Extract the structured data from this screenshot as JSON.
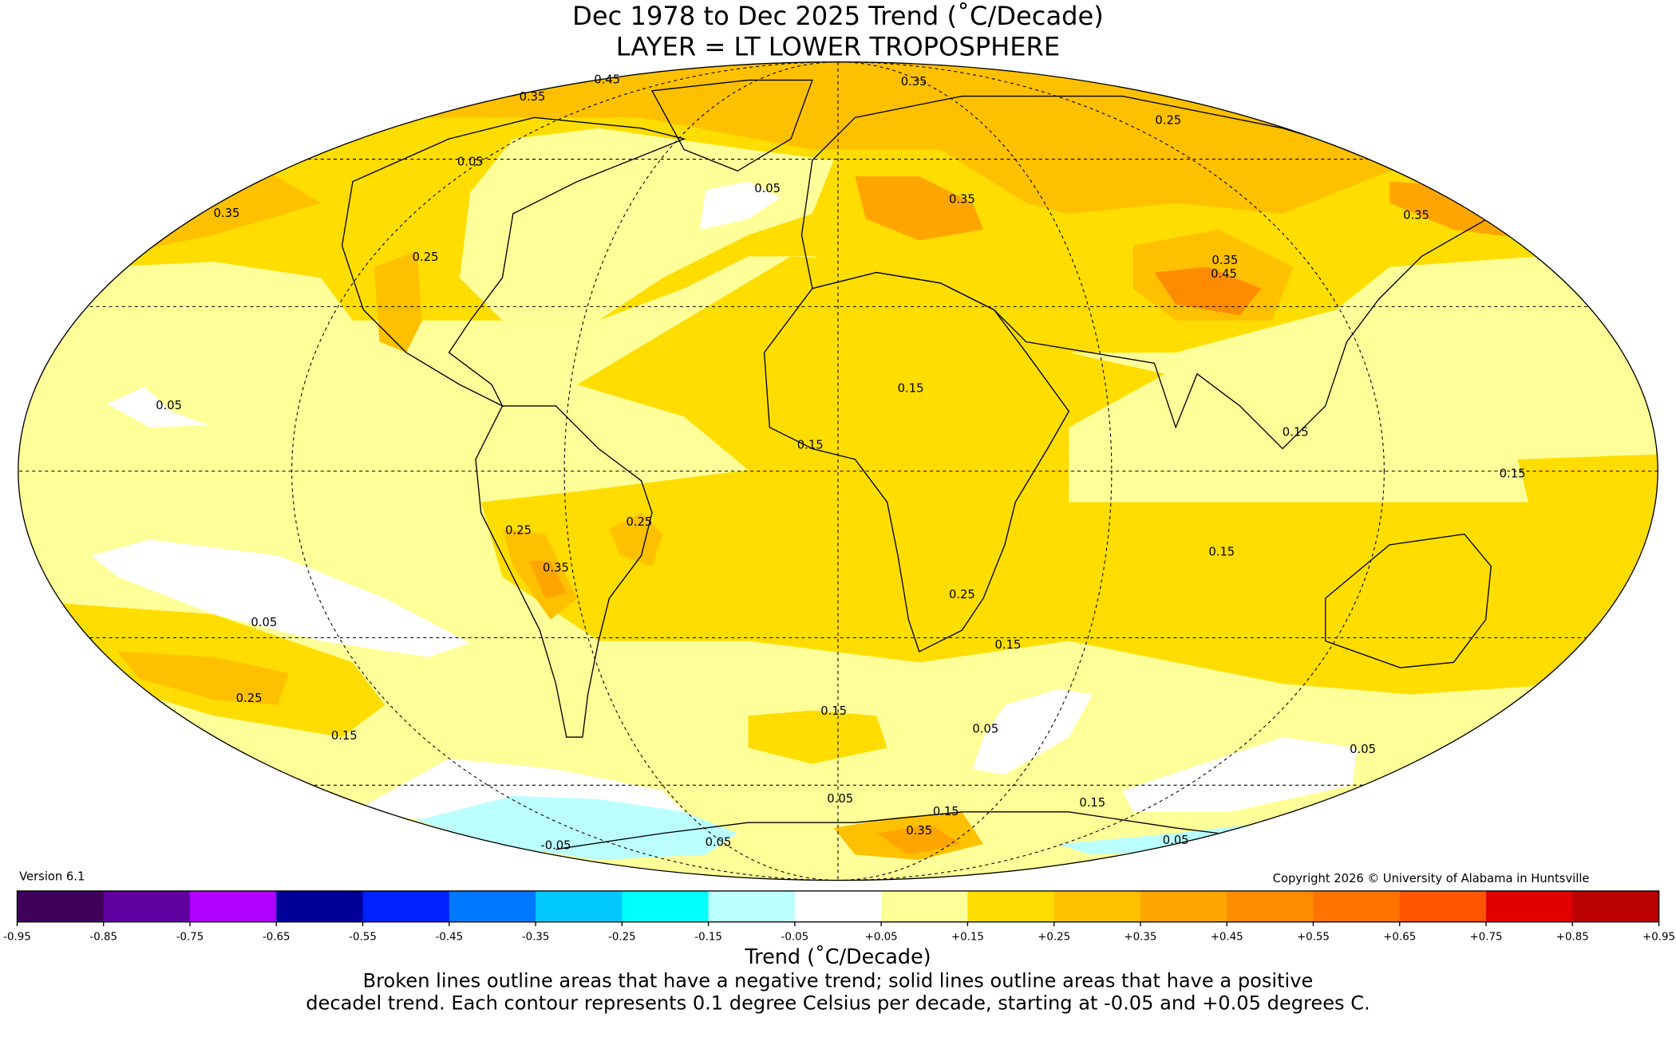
{
  "chart_data": {
    "type": "heatmap",
    "projection": "Mollweide",
    "title": "Dec 1978 to Dec 2025 Trend (˚C/Decade)",
    "subtitle": "LAYER = LT LOWER TROPOSPHERE",
    "version": "Version 6.1",
    "copyright": "Copyright 2026 © University of Alabama in Huntsville",
    "colorbar": {
      "label": "Trend (˚C/Decade)",
      "ticks": [
        "-0.95",
        "-0.85",
        "-0.75",
        "-0.65",
        "-0.55",
        "-0.45",
        "-0.35",
        "-0.25",
        "-0.15",
        "-0.05",
        "+0.05",
        "+0.15",
        "+0.25",
        "+0.35",
        "+0.45",
        "+0.55",
        "+0.65",
        "+0.75",
        "+0.85",
        "+0.95"
      ],
      "colors": [
        "#3f0059",
        "#6000a0",
        "#b000ff",
        "#000099",
        "#0022ff",
        "#0077ff",
        "#00c8ff",
        "#00ffff",
        "#bbffff",
        "#ffffff",
        "#ffff99",
        "#ffdd00",
        "#ffc000",
        "#ffa500",
        "#ff8c00",
        "#ff7400",
        "#ff5500",
        "#e00000",
        "#bb0000"
      ],
      "range": [
        -0.95,
        0.95
      ]
    },
    "caption_line1": "Broken lines outline areas that have a negative trend; solid lines outline areas that have a positive",
    "caption_line2": "decadel trend. Each contour represents 0.1 degree Celsius per decade, starting at -0.05 and +0.05 degrees C.",
    "contour_labels": [
      "0.45",
      "0.35",
      "0.35",
      "0.25",
      "0.35",
      "0.35",
      "0.25",
      "0.05",
      "0.05",
      "0.35",
      "0.35",
      "0.45",
      "0.05",
      "0.15",
      "0.15",
      "0.25",
      "0.25",
      "0.35",
      "0.15",
      "0.15",
      "0.15",
      "0.25",
      "0.15",
      "0.05",
      "0.25",
      "0.15",
      "0.15",
      "0.05",
      "0.05",
      "0.05",
      "0.15",
      "0.15",
      "0.35",
      "-0.05",
      "0.05",
      "0.05"
    ]
  }
}
